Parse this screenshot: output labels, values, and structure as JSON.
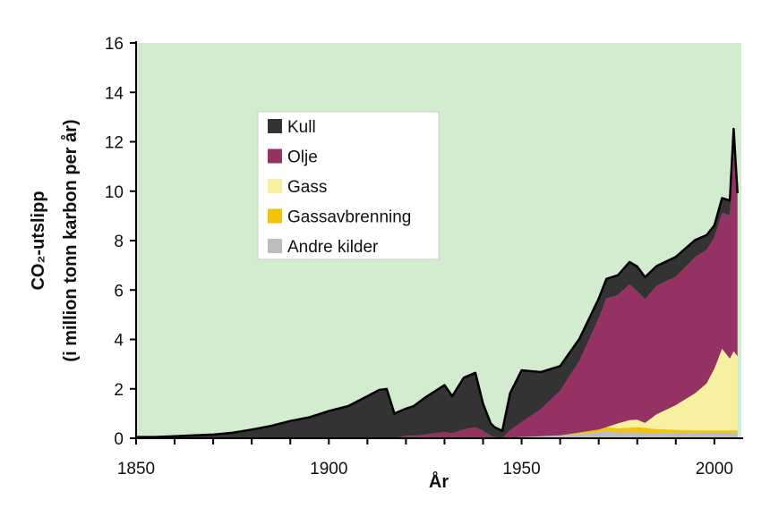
{
  "chart_data": {
    "type": "area",
    "stacked": true,
    "xlabel": "År",
    "ylabel_line1": "CO₂-utslipp",
    "ylabel_line2": "(i million tonn karbon per år)",
    "xlim": [
      1850,
      2007
    ],
    "ylim": [
      0,
      16
    ],
    "xticks": [
      1850,
      1900,
      1950,
      2000
    ],
    "yticks": [
      0,
      2,
      4,
      6,
      8,
      10,
      12,
      14,
      16
    ],
    "grid": false,
    "legend_position": "upper-left",
    "background_color": "#d3ebcf",
    "x": [
      1850,
      1855,
      1860,
      1865,
      1870,
      1875,
      1880,
      1885,
      1890,
      1895,
      1900,
      1905,
      1910,
      1913,
      1915,
      1917,
      1920,
      1922,
      1925,
      1930,
      1932,
      1935,
      1938,
      1940,
      1942,
      1943,
      1945,
      1947,
      1950,
      1955,
      1960,
      1965,
      1970,
      1972,
      1975,
      1978,
      1980,
      1982,
      1985,
      1990,
      1995,
      1998,
      2000,
      2002,
      2004,
      2005,
      2006
    ],
    "series": [
      {
        "name": "Kull",
        "color": "#333333",
        "values": [
          0.05,
          0.05,
          0.08,
          0.12,
          0.15,
          0.22,
          0.35,
          0.5,
          0.7,
          0.85,
          1.1,
          1.3,
          1.7,
          1.95,
          2.0,
          1.0,
          1.1,
          1.2,
          1.5,
          1.9,
          1.5,
          2.1,
          2.2,
          1.1,
          0.5,
          0.4,
          0.3,
          1.5,
          2.1,
          1.5,
          1.0,
          0.9,
          0.8,
          0.8,
          0.8,
          0.9,
          1.0,
          0.9,
          0.8,
          0.8,
          0.7,
          0.6,
          0.5,
          0.6,
          0.6,
          1.0,
          0.1
        ]
      },
      {
        "name": "Olje",
        "color": "#943264",
        "values": [
          0,
          0,
          0,
          0,
          0,
          0,
          0,
          0,
          0,
          0,
          0,
          0,
          0,
          0,
          0,
          0,
          0.1,
          0.1,
          0.15,
          0.25,
          0.2,
          0.35,
          0.45,
          0.3,
          0.1,
          0.05,
          0.0,
          0.3,
          0.6,
          1.1,
          1.8,
          2.9,
          4.5,
          5.2,
          5.2,
          5.5,
          5.2,
          5.0,
          5.2,
          5.2,
          5.5,
          5.4,
          5.3,
          5.5,
          5.8,
          8.0,
          6.5
        ]
      },
      {
        "name": "Gass",
        "color": "#f6f0a0",
        "values": [
          0,
          0,
          0,
          0,
          0,
          0,
          0,
          0,
          0,
          0,
          0,
          0,
          0,
          0,
          0,
          0,
          0,
          0,
          0,
          0,
          0,
          0,
          0,
          0,
          0,
          0,
          0,
          0,
          0,
          0,
          0,
          0,
          0,
          0,
          0.2,
          0.3,
          0.3,
          0.2,
          0.6,
          1.0,
          1.5,
          1.9,
          2.5,
          3.3,
          2.9,
          3.2,
          3.0
        ]
      },
      {
        "name": "Gassavbrenning",
        "color": "#f5c400",
        "values": [
          0,
          0,
          0,
          0,
          0,
          0,
          0,
          0,
          0,
          0,
          0,
          0,
          0,
          0,
          0,
          0,
          0,
          0,
          0,
          0,
          0,
          0,
          0,
          0,
          0,
          0,
          0,
          0,
          0,
          0,
          0,
          0.05,
          0.1,
          0.15,
          0.15,
          0.18,
          0.2,
          0.2,
          0.15,
          0.12,
          0.1,
          0.1,
          0.1,
          0.1,
          0.1,
          0.1,
          0.1
        ]
      },
      {
        "name": "Andre kilder",
        "color": "#bdbdbd",
        "values": [
          0,
          0,
          0,
          0,
          0,
          0,
          0,
          0,
          0,
          0,
          0,
          0,
          0,
          0,
          0,
          0,
          0,
          0,
          0,
          0,
          0,
          0,
          0,
          0,
          0,
          0,
          0,
          0.02,
          0.05,
          0.08,
          0.12,
          0.18,
          0.25,
          0.3,
          0.25,
          0.25,
          0.25,
          0.22,
          0.22,
          0.22,
          0.22,
          0.22,
          0.22,
          0.22,
          0.22,
          0.22,
          0.22
        ]
      }
    ]
  }
}
